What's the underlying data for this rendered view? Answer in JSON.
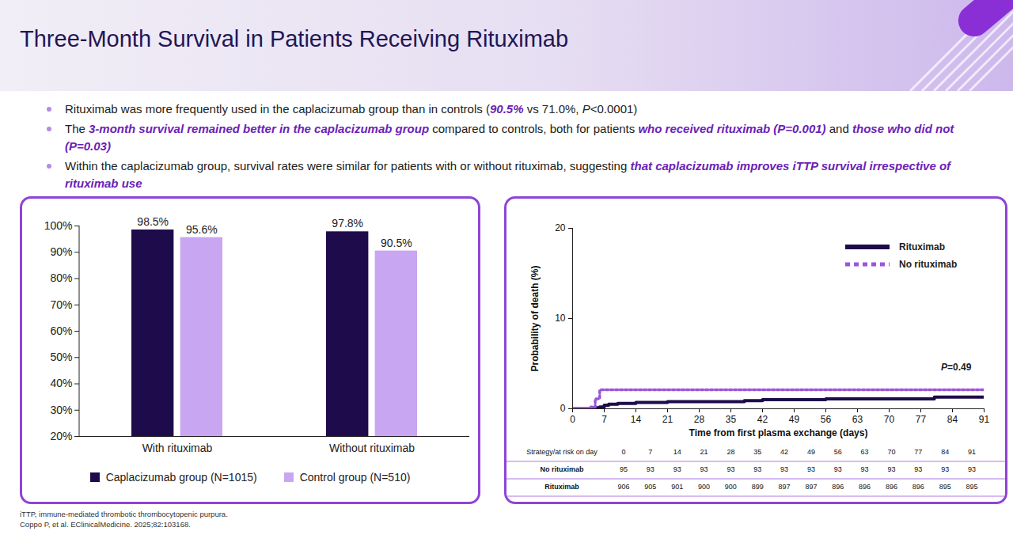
{
  "title": "Three-Month Survival in Patients Receiving Rituximab",
  "bullets": [
    [
      {
        "text": "Rituximab was more frequently used in the caplacizumab group than in controls (",
        "style": "regular"
      },
      {
        "text": "90.5%",
        "style": "bold-italic"
      },
      {
        "text": " vs 71.0%, ",
        "style": "regular"
      },
      {
        "text": "P",
        "style": "italic"
      },
      {
        "text": "<0.0001)",
        "style": "regular"
      }
    ],
    [
      {
        "text": "The ",
        "style": "regular"
      },
      {
        "text": "3-month survival remained better in the caplacizumab group",
        "style": "bold-italic"
      },
      {
        "text": " compared to controls, both for patients ",
        "style": "regular"
      },
      {
        "text": "who received rituximab (P=0.001)",
        "style": "bold-italic"
      },
      {
        "text": " and ",
        "style": "regular"
      },
      {
        "text": "those who did not (P=0.03)",
        "style": "bold-italic"
      }
    ],
    [
      {
        "text": "Within the caplacizumab group, survival rates were similar for patients with or without rituximab, suggesting ",
        "style": "regular"
      },
      {
        "text": "that caplacizumab improves iTTP survival irrespective of rituximab use",
        "style": "bold-italic"
      }
    ]
  ],
  "footnotes": [
    "iTTP, immune-mediated thrombotic thrombocytopenic purpura.",
    "Coppo P, et al. EClinicalMedicine. 2025;82:103168."
  ],
  "chart_data": [
    {
      "type": "bar",
      "categories": [
        "With rituximab",
        "Without rituximab"
      ],
      "series": [
        {
          "name": "Caplacizumab group (N=1015)",
          "color": "#1e0b4b",
          "values": [
            98.5,
            97.8
          ],
          "value_labels": [
            "98.5%",
            "97.8%"
          ]
        },
        {
          "name": "Control group (N=510)",
          "color": "#c9a6f1",
          "values": [
            95.6,
            90.5
          ],
          "value_labels": [
            "95.6%",
            "90.5%"
          ]
        }
      ],
      "ylim": [
        20,
        100
      ],
      "yticks": [
        {
          "value": 20,
          "label": "20%"
        },
        {
          "value": 30,
          "label": "30%"
        },
        {
          "value": 40,
          "label": "40%"
        },
        {
          "value": 50,
          "label": "50%"
        },
        {
          "value": 60,
          "label": "60%"
        },
        {
          "value": 70,
          "label": "70%"
        },
        {
          "value": 80,
          "label": "80%"
        },
        {
          "value": 90,
          "label": "90%"
        },
        {
          "value": 100,
          "label": "100%"
        }
      ],
      "data_labels": true,
      "grid": false,
      "legend": "bottom"
    },
    {
      "type": "line",
      "xlabel": "Time from first plasma exchange (days)",
      "ylabel": "Probability of death (%)",
      "xlim": [
        0,
        91
      ],
      "xticks": [
        0,
        7,
        14,
        21,
        28,
        35,
        42,
        49,
        56,
        63,
        70,
        77,
        84,
        91
      ],
      "ylim": [
        0,
        20
      ],
      "yticks": [
        0,
        10,
        20
      ],
      "grid": false,
      "legend": "upper right",
      "series": [
        {
          "name": "Rituximab",
          "color": "#1e0b4b",
          "line_style": "solid",
          "x": [
            0,
            5,
            6,
            7,
            8,
            10,
            14,
            21,
            35,
            38,
            42,
            50,
            56,
            77,
            80,
            91
          ],
          "values": [
            0,
            0.1,
            0.2,
            0.4,
            0.5,
            0.6,
            0.7,
            0.8,
            0.8,
            0.9,
            1.0,
            1.0,
            1.1,
            1.1,
            1.3,
            1.3
          ]
        },
        {
          "name": "No rituximab",
          "color": "#9b55dc",
          "line_style": "dotted",
          "x": [
            0,
            4,
            5,
            6,
            91
          ],
          "values": [
            0,
            0.2,
            1.1,
            2.1,
            2.1
          ]
        }
      ],
      "annotations": [
        {
          "text": "P=0.49"
        }
      ],
      "at_risk_table": {
        "header": "Strategy/at risk on day",
        "days": [
          0,
          7,
          14,
          21,
          28,
          35,
          42,
          49,
          56,
          63,
          70,
          77,
          84,
          91
        ],
        "rows": [
          {
            "name": "No rituximab",
            "values": [
              95,
              93,
              93,
              93,
              93,
              93,
              93,
              93,
              93,
              93,
              93,
              93,
              93,
              93
            ]
          },
          {
            "name": "Rituximab",
            "values": [
              906,
              905,
              901,
              900,
              900,
              899,
              897,
              897,
              896,
              896,
              896,
              896,
              895,
              895
            ]
          }
        ]
      }
    }
  ]
}
